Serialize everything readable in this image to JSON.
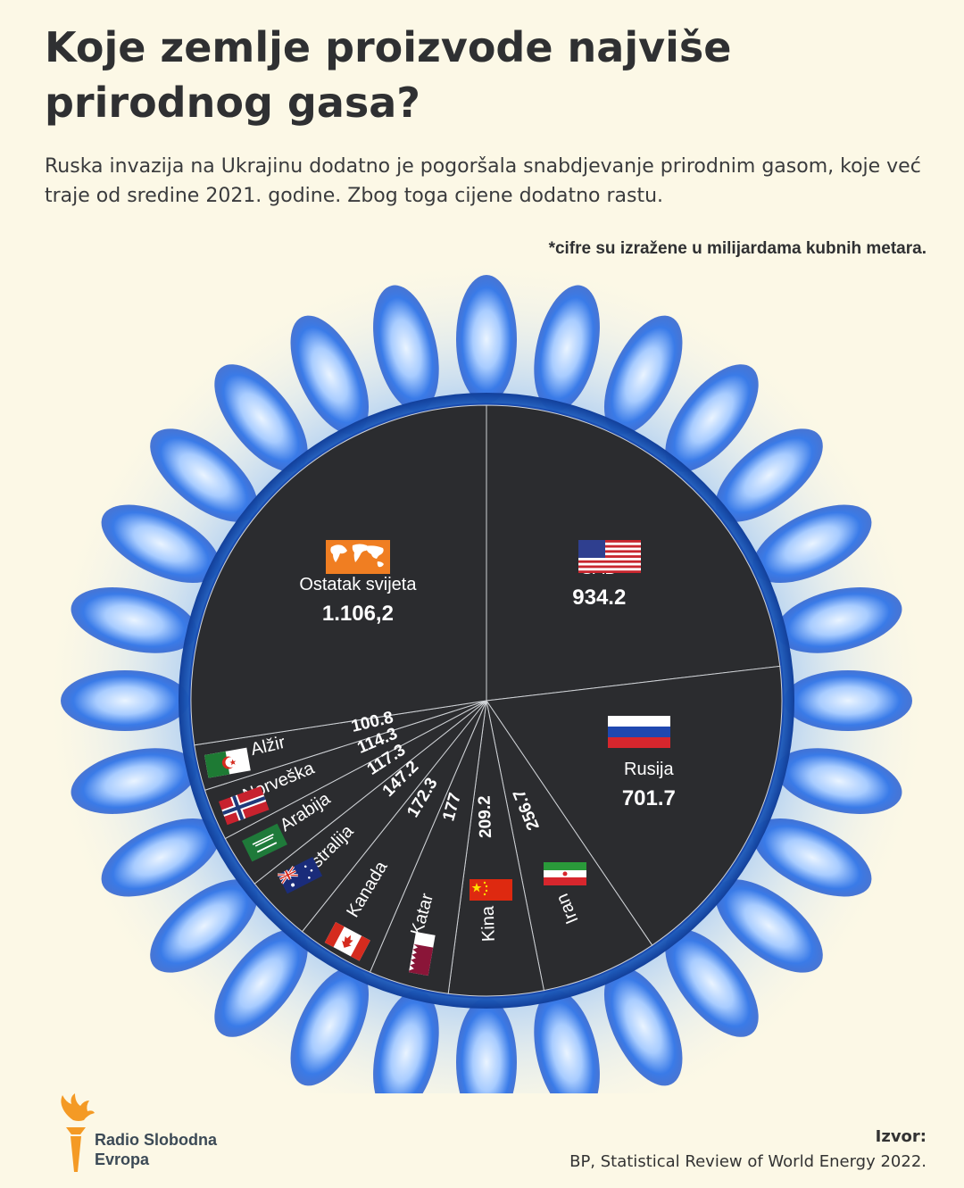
{
  "title": "Koje zemlje proizvode najviše prirodnog gasa?",
  "subtitle": "Ruska invazija na Ukrajinu dodatno je pogoršala snabdjevanje prirodnim gasom, koje već traje od sredine 2021. godine. Zbog toga cijene dodatno rastu.",
  "unit_note": "*cifre su izražene u milijardama kubnih metara.",
  "source": {
    "label": "Izvor:",
    "text": "BP, Statistical Review of World Energy 2022."
  },
  "logo": {
    "line1": "Radio Slobodna",
    "line2": "Evropa"
  },
  "colors": {
    "background": "#fcf8e6",
    "pie_fill": "#2b2c2f",
    "ring": "#3f8fe6",
    "flame": "#3a7be8",
    "text_dark": "#2f3032",
    "logo_orange": "#f49a25"
  },
  "chart_data": {
    "type": "pie",
    "unit": "milijarde kubnih metara",
    "slices": [
      {
        "label": "SAD",
        "value": 934.2,
        "display": "934.2",
        "icon": "us-flag-icon"
      },
      {
        "label": "Rusija",
        "value": 701.7,
        "display": "701.7",
        "icon": "russia-flag-icon"
      },
      {
        "label": "Iran",
        "value": 256.7,
        "display": "256.7",
        "icon": "iran-flag-icon"
      },
      {
        "label": "Kina",
        "value": 209.2,
        "display": "209.2",
        "icon": "china-flag-icon"
      },
      {
        "label": "Katar",
        "value": 177,
        "display": "177",
        "icon": "qatar-flag-icon"
      },
      {
        "label": "Kanada",
        "value": 172.3,
        "display": "172.3",
        "icon": "canada-flag-icon"
      },
      {
        "label": "Australija",
        "value": 147.2,
        "display": "147.2",
        "icon": "australia-flag-icon"
      },
      {
        "label": "S. Arabija",
        "value": 117.3,
        "display": "117.3",
        "icon": "saudi-flag-icon"
      },
      {
        "label": "Norveška",
        "value": 114.3,
        "display": "114.3",
        "icon": "norway-flag-icon"
      },
      {
        "label": "Alžir",
        "value": 100.8,
        "display": "100.8",
        "icon": "algeria-flag-icon"
      },
      {
        "label": "Ostatak svijeta",
        "value": 1106.2,
        "display": "1.106,2",
        "icon": "world-map-icon"
      }
    ]
  }
}
